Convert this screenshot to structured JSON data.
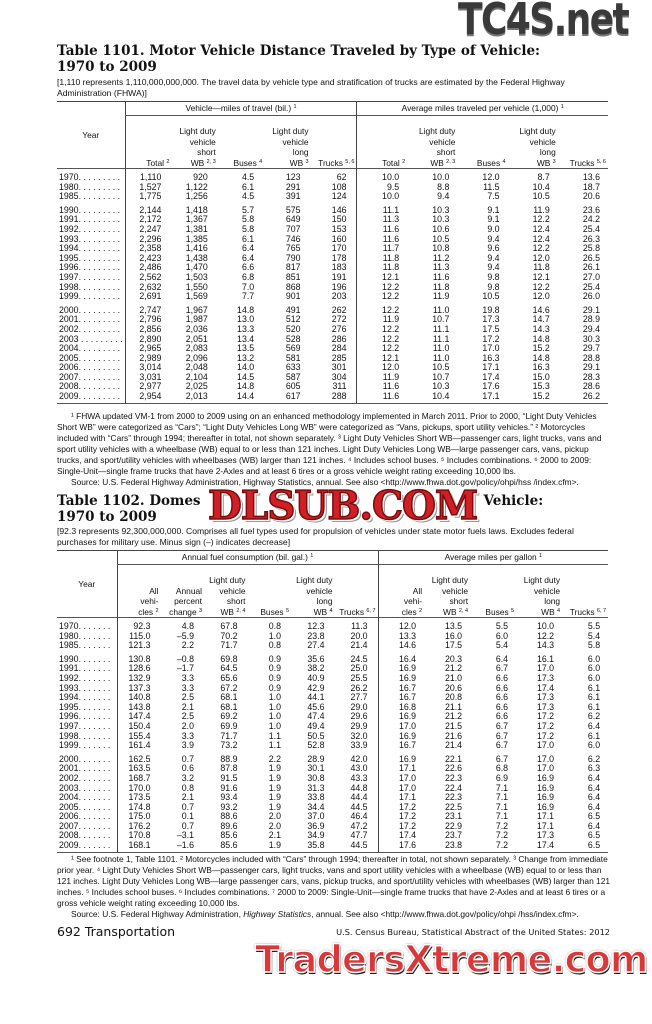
{
  "table1101": {
    "title_line1": "Table 1101. Motor Vehicle Distance Traveled by Type of Vehicle:",
    "title_line2": "1970 to 2009",
    "headnote": "[1,110 represents 1,110,000,000,000. The travel data by vehicle type and stratification of trucks are estimated by the Federal Highway Administration (FHWA)]",
    "year_header": "Year",
    "group_left": "Vehicle—miles of travel (bil.)",
    "group_left_sup": "1",
    "group_right": "Average miles traveled per vehicle (1,000)",
    "group_right_sup": "1",
    "columns": [
      {
        "label": [
          "Total"
        ],
        "sup": "2"
      },
      {
        "label": [
          "Light duty",
          "vehicle",
          "short",
          "WB"
        ],
        "sup": "2, 3"
      },
      {
        "label": [
          "Buses"
        ],
        "sup": "4"
      },
      {
        "label": [
          "Light duty",
          "vehicle",
          "long",
          "WB"
        ],
        "sup": "3"
      },
      {
        "label": [
          "Trucks"
        ],
        "sup": "5, 6"
      },
      {
        "label": [
          "Total"
        ],
        "sup": "2"
      },
      {
        "label": [
          "Light duty",
          "vehicle",
          "short",
          "WB"
        ],
        "sup": "2, 3"
      },
      {
        "label": [
          "Buses"
        ],
        "sup": "4"
      },
      {
        "label": [
          "Light duty",
          "vehicle",
          "long",
          "WB"
        ],
        "sup": "3"
      },
      {
        "label": [
          "Trucks"
        ],
        "sup": "5, 6"
      }
    ],
    "rows": [
      [
        "1970. . . . . . . . .",
        "1,110",
        "920",
        "4.5",
        "123",
        "62",
        "10.0",
        "10.0",
        "12.0",
        "8.7",
        "13.6"
      ],
      [
        "1980. . . . . . . . .",
        "1,527",
        "1,122",
        "6.1",
        "291",
        "108",
        "9.5",
        "8.8",
        "11.5",
        "10.4",
        "18.7"
      ],
      [
        "1985. . . . . . . . .",
        "1,775",
        "1,256",
        "4.5",
        "391",
        "124",
        "10.0",
        "9.4",
        "7.5",
        "10.5",
        "20.6"
      ],
      null,
      [
        "1990. . . . . . . . .",
        "2,144",
        "1,418",
        "5.7",
        "575",
        "146",
        "11.1",
        "10.3",
        "9.1",
        "11.9",
        "23.6"
      ],
      [
        "1991. . . . . . . . .",
        "2,172",
        "1,367",
        "5.8",
        "649",
        "150",
        "11.3",
        "10.3",
        "9.1",
        "12.2",
        "24.2"
      ],
      [
        "1992. . . . . . . . .",
        "2,247",
        "1,381",
        "5.8",
        "707",
        "153",
        "11.6",
        "10.6",
        "9.0",
        "12.4",
        "25.4"
      ],
      [
        "1993. . . . . . . . .",
        "2,296",
        "1,385",
        "6.1",
        "746",
        "160",
        "11.6",
        "10.5",
        "9.4",
        "12.4",
        "26.3"
      ],
      [
        "1994. . . . . . . . .",
        "2,358",
        "1,416",
        "6.4",
        "765",
        "170",
        "11.7",
        "10.8",
        "9.6",
        "12.2",
        "25.8"
      ],
      [
        "1995. . . . . . . . .",
        "2,423",
        "1,438",
        "6.4",
        "790",
        "178",
        "11.8",
        "11.2",
        "9.4",
        "12.0",
        "26.5"
      ],
      [
        "1996. . . . . . . . .",
        "2,486",
        "1,470",
        "6.6",
        "817",
        "183",
        "11.8",
        "11.3",
        "9.4",
        "11.8",
        "26.1"
      ],
      [
        "1997. . . . . . . . .",
        "2,562",
        "1,503",
        "6.8",
        "851",
        "191",
        "12.1",
        "11.6",
        "9.8",
        "12.1",
        "27.0"
      ],
      [
        "1998. . . . . . . . .",
        "2,632",
        "1,550",
        "7.0",
        "868",
        "196",
        "12.2",
        "11.8",
        "9.8",
        "12.2",
        "25.4"
      ],
      [
        "1999. . . . . . . . .",
        "2,691",
        "1,569",
        "7.7",
        "901",
        "203",
        "12.2",
        "11.9",
        "10.5",
        "12.0",
        "26.0"
      ],
      null,
      [
        "2000. . . . . . . . .",
        "2,747",
        "1,967",
        "14.8",
        "491",
        "262",
        "12.2",
        "11.0",
        "19.8",
        "14.6",
        "29.1"
      ],
      [
        "2001. . . . . . . . .",
        "2,796",
        "1,987",
        "13.0",
        "512",
        "272",
        "11.9",
        "10.7",
        "17.3",
        "14.7",
        "28.9"
      ],
      [
        "2002. . . . . . . . .",
        "2,856",
        "2,036",
        "13.3",
        "520",
        "276",
        "12.2",
        "11.1",
        "17.5",
        "14.3",
        "29.4"
      ],
      [
        "2003 . . . . . . . . .",
        "2,890",
        "2,051",
        "13.4",
        "528",
        "286",
        "12.2",
        "11.1",
        "17.2",
        "14.8",
        "30.3"
      ],
      [
        "2004. . . . . . . . .",
        "2,965",
        "2,083",
        "13.5",
        "569",
        "284",
        "12.2",
        "11.0",
        "17.0",
        "15.2",
        "29.7"
      ],
      [
        "2005. . . . . . . . .",
        "2,989",
        "2,096",
        "13.2",
        "581",
        "285",
        "12.1",
        "11.0",
        "16.3",
        "14.8",
        "28.8"
      ],
      [
        "2006. . . . . . . . .",
        "3,014",
        "2,048",
        "14.0",
        "633",
        "301",
        "12.0",
        "10.5",
        "17.1",
        "16.3",
        "29.1"
      ],
      [
        "2007. . . . . . . . .",
        "3,031",
        "2,104",
        "14.5",
        "587",
        "304",
        "11.9",
        "10.7",
        "17.4",
        "15.0",
        "28.3"
      ],
      [
        "2008. . . . . . . . .",
        "2,977",
        "2,025",
        "14.8",
        "605",
        "311",
        "11.6",
        "10.3",
        "17.6",
        "15.3",
        "28.6"
      ],
      [
        "2009. . . . . . . . .",
        "2,954",
        "2,013",
        "14.4",
        "617",
        "288",
        "11.6",
        "10.4",
        "17.1",
        "15.2",
        "26.2"
      ]
    ],
    "footnotes": "¹ FHWA updated VM-1 from 2000 to 2009 using on an enhanced methodology implemented in March 2011. Prior to 2000, “Light Duty Vehicles Short WB” were categorized as “Cars”; “Light Duty Vehicles Long WB” were categorized as “Vans, pickups, sport utility vehicles.” ² Motorcycles included with “Cars” through 1994; thereafter in total, not shown separately. ³ Light Duty Vehicles Short WB—passenger cars, light trucks, vans and sport utility vehicles with a wheelbase (WB) equal to or less than 121 inches. Light Duty Vehicles Long WB—large passenger cars, vans, pickup trucks, and sport/utility vehicles with wheelbases (WB) larger than 121 inches. ⁴ Includes school buses. ⁵ Includes combinations. ⁶ 2000 to 2009: Single-Unit—single frame trucks that have 2-Axles and at least 6 tires or a gross vehicle weight rating exceeding 10,000 lbs.",
    "source": "Source: U.S. Federal Highway Administration, Highway Statistics, annual. See also <http://www.fhwa.dot.gov/policy/ohpi/hss /index.cfm>."
  },
  "table1102": {
    "title_line1_start": "Table 1102. Domes",
    "title_line1_end": "Vehicle:",
    "title_line2": "1970 to 2009",
    "headnote": "[92.3 represents 92,300,000,000. Comprises all fuel types used for propulsion of vehicles under  state motor fuels laws. Excludes federal purchases for military use. Minus sign (–) indicates decrease]",
    "year_header": "Year",
    "group_left": "Annual fuel consumption (bil. gal.)",
    "group_left_sup": "1",
    "group_right": "Average miles per gallon",
    "group_right_sup": "1",
    "columns": [
      {
        "label": [
          "All",
          "vehi-",
          "cles"
        ],
        "sup": "2"
      },
      {
        "label": [
          "Annual",
          "percent",
          "change"
        ],
        "sup": "3"
      },
      {
        "label": [
          "Light duty",
          "vehicle",
          "short",
          "WB"
        ],
        "sup": "2, 4"
      },
      {
        "label": [
          "Buses"
        ],
        "sup": "5"
      },
      {
        "label": [
          "Light duty",
          "vehicle",
          "long",
          "WB"
        ],
        "sup": "4"
      },
      {
        "label": [
          "Trucks"
        ],
        "sup": "6, 7"
      },
      {
        "label": [
          "All",
          "vehi-",
          "cles"
        ],
        "sup": "2"
      },
      {
        "label": [
          "Light duty",
          "vehicle",
          "short",
          "WB"
        ],
        "sup": "2, 4"
      },
      {
        "label": [
          "Buses"
        ],
        "sup": "5"
      },
      {
        "label": [
          "Light duty",
          "vehicle",
          "long",
          "WB"
        ],
        "sup": "4"
      },
      {
        "label": [
          "Trucks"
        ],
        "sup": "6, 7"
      }
    ],
    "rows": [
      [
        "1970. . . . . . .",
        "92.3",
        "4.8",
        "67.8",
        "0.8",
        "12.3",
        "11.3",
        "12.0",
        "13.5",
        "5.5",
        "10.0",
        "5.5"
      ],
      [
        "1980. . . . . . .",
        "115.0",
        "–5.9",
        "70.2",
        "1.0",
        "23.8",
        "20.0",
        "13.3",
        "16.0",
        "6.0",
        "12.2",
        "5.4"
      ],
      [
        "1985. . . . . . .",
        "121.3",
        "2.2",
        "71.7",
        "0.8",
        "27.4",
        "21.4",
        "14.6",
        "17.5",
        "5.4",
        "14.3",
        "5.8"
      ],
      null,
      [
        "1990. . . . . . .",
        "130.8",
        "–0.8",
        "69.8",
        "0.9",
        "35.6",
        "24.5",
        "16.4",
        "20.3",
        "6.4",
        "16.1",
        "6.0"
      ],
      [
        "1991. . . . . . .",
        "128.6",
        "–1.7",
        "64.5",
        "0.9",
        "38.2",
        "25.0",
        "16.9",
        "21.2",
        "6.7",
        "17.0",
        "6.0"
      ],
      [
        "1992. . . . . . .",
        "132.9",
        "3.3",
        "65.6",
        "0.9",
        "40.9",
        "25.5",
        "16.9",
        "21.0",
        "6.6",
        "17.3",
        "6.0"
      ],
      [
        "1993. . . . . . .",
        "137.3",
        "3.3",
        "67.2",
        "0.9",
        "42.9",
        "26.2",
        "16.7",
        "20.6",
        "6.6",
        "17.4",
        "6.1"
      ],
      [
        "1994. . . . . . .",
        "140.8",
        "2.5",
        "68.1",
        "1.0",
        "44.1",
        "27.7",
        "16.7",
        "20.8",
        "6.6",
        "17.3",
        "6.1"
      ],
      [
        "1995. . . . . . .",
        "143.8",
        "2.1",
        "68.1",
        "1.0",
        "45.6",
        "29.0",
        "16.8",
        "21.1",
        "6.6",
        "17.3",
        "6.1"
      ],
      [
        "1996. . . . . . .",
        "147.4",
        "2.5",
        "69.2",
        "1.0",
        "47.4",
        "29.6",
        "16.9",
        "21.2",
        "6.6",
        "17.2",
        "6.2"
      ],
      [
        "1997. . . . . . .",
        "150.4",
        "2.0",
        "69.9",
        "1.0",
        "49.4",
        "29.9",
        "17.0",
        "21.5",
        "6.7",
        "17.2",
        "6.4"
      ],
      [
        "1998. . . . . . .",
        "155.4",
        "3.3",
        "71.7",
        "1.1",
        "50.5",
        "32.0",
        "16.9",
        "21.6",
        "6.7",
        "17.2",
        "6.1"
      ],
      [
        "1999. . . . . . .",
        "161.4",
        "3.9",
        "73.2",
        "1.1",
        "52.8",
        "33.9",
        "16.7",
        "21.4",
        "6.7",
        "17.0",
        "6.0"
      ],
      null,
      [
        "2000. . . . . . .",
        "162.5",
        "0.7",
        "88.9",
        "2.2",
        "28.9",
        "42.0",
        "16.9",
        "22.1",
        "6.7",
        "17.0",
        "6.2"
      ],
      [
        "2001. . . . . . .",
        "163.5",
        "0.6",
        "87.8",
        "1.9",
        "30.1",
        "43.0",
        "17.1",
        "22.6",
        "6.8",
        "17.0",
        "6.3"
      ],
      [
        "2002. . . . . . .",
        "168.7",
        "3.2",
        "91.5",
        "1.9",
        "30.8",
        "43.3",
        "17.0",
        "22.3",
        "6.9",
        "16.9",
        "6.4"
      ],
      [
        "2003. . . . . . .",
        "170.0",
        "0.8",
        "91.6",
        "1.9",
        "31.3",
        "44.8",
        "17.0",
        "22.4",
        "7.1",
        "16.9",
        "6.4"
      ],
      [
        "2004. . . . . . .",
        "173.5",
        "2.1",
        "93.4",
        "1.9",
        "33.8",
        "44.4",
        "17.1",
        "22.3",
        "7.1",
        "16.9",
        "6.4"
      ],
      [
        "2005. . . . . . .",
        "174.8",
        "0.7",
        "93.2",
        "1.9",
        "34.4",
        "44.5",
        "17.2",
        "22.5",
        "7.1",
        "16.9",
        "6.4"
      ],
      [
        "2006. . . . . . .",
        "175.0",
        "0.1",
        "88.6",
        "2.0",
        "37.0",
        "46.4",
        "17.2",
        "23.1",
        "7.1",
        "17.1",
        "6.5"
      ],
      [
        "2007. . . . . . .",
        "176.2",
        "0.7",
        "89.6",
        "2.0",
        "36.9",
        "47.2",
        "17.2",
        "22.9",
        "7.2",
        "17.1",
        "6.4"
      ],
      [
        "2008. . . . . . .",
        "170.8",
        "–3.1",
        "85.6",
        "2.1",
        "34.9",
        "47.7",
        "17.4",
        "23.7",
        "7.2",
        "17.3",
        "6.5"
      ],
      [
        "2009. . . . . . .",
        "168.1",
        "–1.6",
        "85.6",
        "1.9",
        "35.8",
        "44.5",
        "17.6",
        "23.8",
        "7.2",
        "17.4",
        "6.5"
      ]
    ],
    "footnotes": "¹ See footnote 1, Table 1101. ² Motorcycles included with “Cars” through 1994; thereafter in total, not shown separately. ³ Change from immediate prior year. ⁴ Light Duty Vehicles Short WB—passenger cars, light trucks, vans and sport utility vehicles with a wheelbase (WB) equal to or less than 121 inches. Light Duty Vehicles Long WB—large passenger cars, vans, pickup trucks, and sport/utility vehicles with wheelbases (WB) larger than 121 inches. ⁵ Includes school buses. ⁶ Includes combinations. ⁷ 2000 to 2009: Single-Unit—single frame trucks that have 2-Axles and at least 6 tires or a gross vehicle weight rating exceeding 10,000 lbs.",
    "source_pre": "Source: U.S. Federal Highway Administration, ",
    "source_italic": "Highway Statistics",
    "source_post": ", annual. See also <http://www.fhwa.dot.gov/policy/ohpi /hss/index.cfm>."
  },
  "footer": {
    "page_label": "692  Transportation",
    "publication": "U.S. Census Bureau, Statistical Abstract of the United States: 2012"
  },
  "watermarks": {
    "top": "TC4S.net",
    "middle": "DLSUB.COM",
    "bottom": "TradersXtreme.com"
  }
}
